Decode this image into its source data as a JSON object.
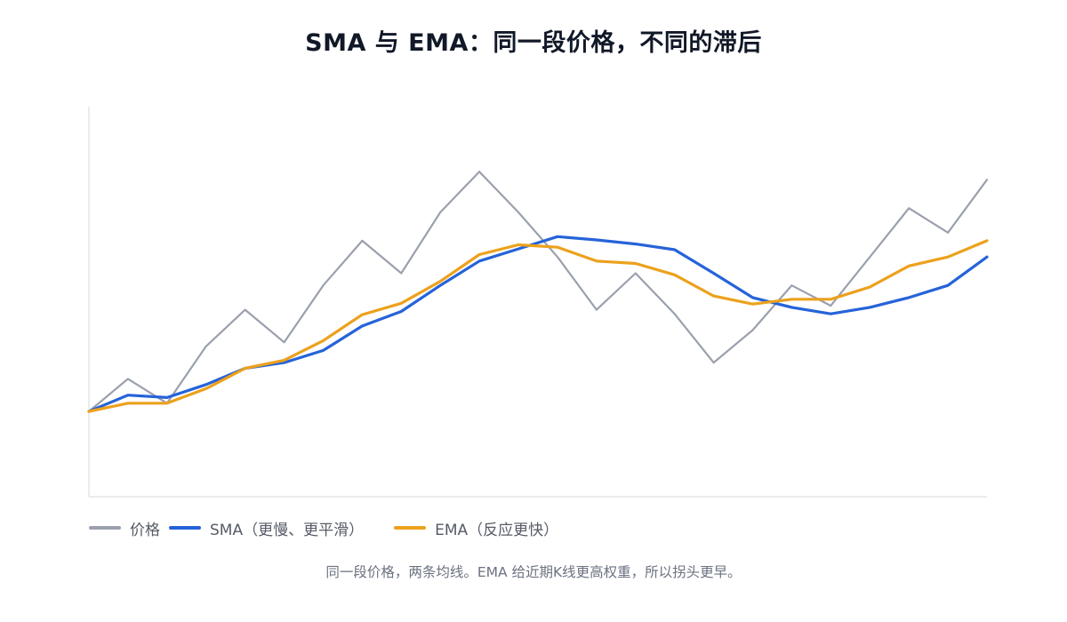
{
  "chart_data": {
    "type": "line",
    "title": "SMA 与 EMA：同一段价格，不同的滞后",
    "xlabel": "",
    "ylabel": "",
    "x": [
      0,
      1,
      2,
      3,
      4,
      5,
      6,
      7,
      8,
      9,
      10,
      11,
      12,
      13,
      14,
      15,
      16,
      17,
      18,
      19,
      20,
      21,
      22,
      23
    ],
    "ylim": [
      0,
      48
    ],
    "grid": false,
    "legend_position": "bottom-left",
    "series": [
      {
        "name": "价格",
        "color": "#9aa0ad",
        "values": [
          10.5,
          14.5,
          11.5,
          18.5,
          23.0,
          19.0,
          26.0,
          31.5,
          27.5,
          35.0,
          40.0,
          35.0,
          29.5,
          23.0,
          27.5,
          22.5,
          16.5,
          20.5,
          26.0,
          23.5,
          29.5,
          35.5,
          32.5,
          39.0
        ]
      },
      {
        "name": "SMA（更慢、更平滑）",
        "color": "#2563d9",
        "values": [
          10.5,
          12.5,
          12.2,
          13.8,
          15.8,
          16.5,
          18.0,
          21.0,
          22.8,
          26.0,
          29.0,
          30.5,
          32.0,
          31.6,
          31.1,
          30.4,
          27.5,
          24.5,
          23.3,
          22.5,
          23.3,
          24.5,
          26.0,
          29.5
        ]
      },
      {
        "name": "EMA（反应更快）",
        "color": "#eca11c",
        "values": [
          10.5,
          11.5,
          11.5,
          13.3,
          15.8,
          16.8,
          19.2,
          22.4,
          23.8,
          26.5,
          29.8,
          31.0,
          30.7,
          29.0,
          28.7,
          27.3,
          24.7,
          23.7,
          24.3,
          24.3,
          25.8,
          28.4,
          29.5,
          31.5
        ]
      }
    ]
  },
  "caption": "同一段价格，两条均线。EMA 给近期K线更高权重，所以拐头更早。"
}
